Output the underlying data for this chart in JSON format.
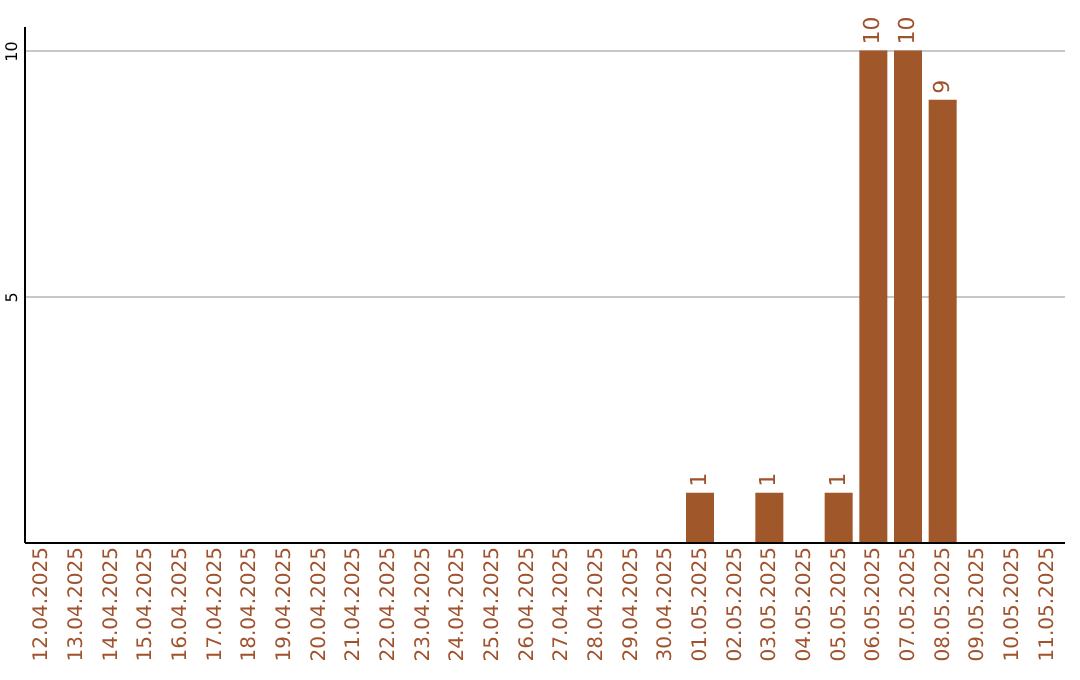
{
  "chart_data": {
    "type": "bar",
    "categories": [
      "12.04.2025",
      "13.04.2025",
      "14.04.2025",
      "15.04.2025",
      "16.04.2025",
      "17.04.2025",
      "18.04.2025",
      "19.04.2025",
      "20.04.2025",
      "21.04.2025",
      "22.04.2025",
      "23.04.2025",
      "24.04.2025",
      "25.04.2025",
      "26.04.2025",
      "27.04.2025",
      "28.04.2025",
      "29.04.2025",
      "30.04.2025",
      "01.05.2025",
      "02.05.2025",
      "03.05.2025",
      "04.05.2025",
      "05.05.2025",
      "06.05.2025",
      "07.05.2025",
      "08.05.2025",
      "09.05.2025",
      "10.05.2025",
      "11.05.2025"
    ],
    "values": [
      0,
      0,
      0,
      0,
      0,
      0,
      0,
      0,
      0,
      0,
      0,
      0,
      0,
      0,
      0,
      0,
      0,
      0,
      0,
      1,
      0,
      1,
      0,
      1,
      10,
      10,
      9,
      0,
      0,
      0
    ],
    "value_labels": [
      null,
      null,
      null,
      null,
      null,
      null,
      null,
      null,
      null,
      null,
      null,
      null,
      null,
      null,
      null,
      null,
      null,
      null,
      null,
      "1",
      null,
      "1",
      null,
      "1",
      "10",
      "10",
      "9",
      null,
      null,
      null
    ],
    "color": "#a0572a",
    "ylim": [
      0,
      10.5
    ],
    "yticks": [
      5,
      10
    ],
    "grid": "y"
  }
}
